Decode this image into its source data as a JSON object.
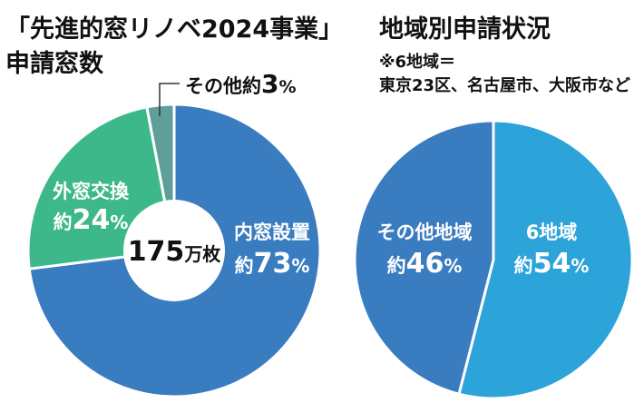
{
  "titles": {
    "left": [
      "「先進的窓リノベ2024事業」",
      "申請窓数"
    ],
    "right": "地域別申請状況",
    "note_lines": [
      "※6地域＝",
      "東京23区、名古屋市、大阪市など"
    ]
  },
  "chart_data": [
    {
      "type": "pie",
      "variant": "donut",
      "title": "「先進的窓リノベ2024事業」申請窓数",
      "center_label": {
        "number": "175",
        "unit": "万枚"
      },
      "slices": [
        {
          "name": "内窓設置",
          "prefix": "約",
          "value": 73,
          "unit": "%",
          "color": "#3a7cc0"
        },
        {
          "name": "外窓交換",
          "prefix": "約",
          "value": 24,
          "unit": "%",
          "color": "#3db88a"
        },
        {
          "name": "その他",
          "prefix": "約",
          "value": 3,
          "unit": "%",
          "color": "#5f9e9a"
        }
      ]
    },
    {
      "type": "pie",
      "title": "地域別申請状況",
      "slices": [
        {
          "name": "6地域",
          "prefix": "約",
          "value": 54,
          "unit": "%",
          "color": "#2ca3d9"
        },
        {
          "name": "その他地域",
          "prefix": "約",
          "value": 46,
          "unit": "%",
          "color": "#3a7cc0"
        }
      ]
    }
  ]
}
